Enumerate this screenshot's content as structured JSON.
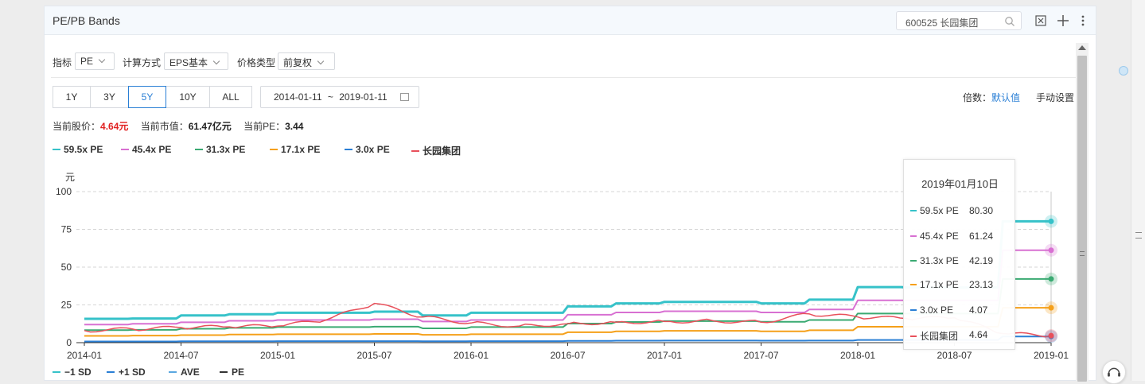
{
  "header": {
    "title": "PE/PB Bands",
    "search_value": "600525 长园集团"
  },
  "filters": {
    "indicator_label": "指标",
    "indicator_value": "PE",
    "calc_label": "计算方式",
    "calc_value": "EPS基本",
    "price_label": "价格类型",
    "price_value": "前复权"
  },
  "range_buttons": [
    "1Y",
    "3Y",
    "5Y",
    "10Y",
    "ALL"
  ],
  "range_active": "5Y",
  "date_range": {
    "start": "2014-01-11",
    "sep": "~",
    "end": "2019-01-11"
  },
  "multiplier": {
    "label": "倍数：",
    "default_link": "默认值",
    "manual": "手动设置"
  },
  "stats": {
    "price_label": "当前股价：",
    "price_value": "4.64元",
    "mcap_label": "当前市值：",
    "mcap_value": "61.47亿元",
    "pe_label": "当前PE：",
    "pe_value": "3.44"
  },
  "colors": {
    "teal": "#36c2c9",
    "pink": "#d870d2",
    "green": "#3aaa72",
    "orange": "#f5a01a",
    "blue": "#2a7fd5",
    "red": "#e8505b"
  },
  "tooltip": {
    "date": "2019年01月10日",
    "rows": [
      {
        "label": "59.5x PE",
        "value": "80.30"
      },
      {
        "label": "45.4x PE",
        "value": "61.24"
      },
      {
        "label": "31.3x PE",
        "value": "42.19"
      },
      {
        "label": "17.1x PE",
        "value": "23.13"
      },
      {
        "label": "3.0x PE",
        "value": "4.07"
      },
      {
        "label": "长园集团",
        "value": "4.64"
      }
    ]
  },
  "bottom_legend": [
    "−1 SD",
    "+1 SD",
    "AVE",
    "PE"
  ],
  "chart_data": {
    "type": "line",
    "ylabel": "元",
    "ylim": [
      0,
      100
    ],
    "yticks": [
      "0",
      "25",
      "50",
      "75",
      "100"
    ],
    "xticks": [
      "2014-01",
      "2014-07",
      "2015-01",
      "2015-07",
      "2016-01",
      "2016-07",
      "2017-01",
      "2017-07",
      "2018-01",
      "2018-07",
      "2019-01"
    ],
    "x": [
      "2014-01",
      "2014-04",
      "2014-07",
      "2014-10",
      "2015-01",
      "2015-04",
      "2015-06",
      "2015-09",
      "2016-01",
      "2016-04",
      "2016-07",
      "2016-10",
      "2017-01",
      "2017-04",
      "2017-07",
      "2017-10",
      "2018-01",
      "2018-04",
      "2018-07",
      "2018-10",
      "2019-01"
    ],
    "series": [
      {
        "name": "59.5x PE",
        "values": [
          15.8,
          16.0,
          18.0,
          18.8,
          19.8,
          19.8,
          20.5,
          18.0,
          19.8,
          19.8,
          24.0,
          26.0,
          27.0,
          27.0,
          26.0,
          28.5,
          36.8,
          36.5,
          36.5,
          80.3,
          80.3
        ]
      },
      {
        "name": "45.4x PE",
        "values": [
          12.0,
          12.5,
          13.5,
          14.5,
          15.0,
          15.0,
          15.5,
          14.0,
          15.0,
          15.0,
          18.5,
          20.0,
          20.8,
          20.8,
          20.0,
          22.0,
          28.0,
          28.0,
          28.0,
          61.2,
          61.2
        ]
      },
      {
        "name": "31.3x PE",
        "values": [
          8.3,
          8.5,
          9.2,
          9.8,
          10.3,
          10.3,
          10.6,
          9.5,
          10.3,
          10.3,
          12.6,
          13.7,
          14.3,
          14.3,
          13.8,
          15.0,
          19.3,
          19.3,
          19.3,
          42.2,
          42.2
        ]
      },
      {
        "name": "17.1x PE",
        "values": [
          4.5,
          4.7,
          5.0,
          5.4,
          5.6,
          5.6,
          5.8,
          5.2,
          5.6,
          5.6,
          6.9,
          7.5,
          7.8,
          7.8,
          7.5,
          8.2,
          10.5,
          10.5,
          10.5,
          23.1,
          23.1
        ]
      },
      {
        "name": "3.0x PE",
        "values": [
          0.8,
          0.8,
          0.9,
          0.9,
          1.0,
          1.0,
          1.0,
          0.9,
          1.0,
          1.0,
          1.2,
          1.3,
          1.4,
          1.4,
          1.3,
          1.4,
          1.8,
          1.8,
          1.8,
          4.1,
          4.1
        ]
      },
      {
        "name": "长园集团",
        "values": [
          8.0,
          9.0,
          10.0,
          10.5,
          11.0,
          15.0,
          26.0,
          17.0,
          13.0,
          11.0,
          12.5,
          13.5,
          14.0,
          14.5,
          13.5,
          19.0,
          17.0,
          16.0,
          16.5,
          6.0,
          4.64
        ]
      }
    ]
  }
}
